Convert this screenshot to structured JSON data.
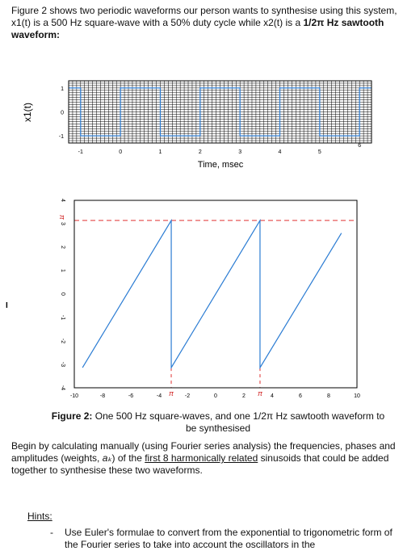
{
  "intro": {
    "part1": "Figure 2 shows two periodic waveforms our person wants to synthesise using this system, x1(t) is a 500 Hz square-wave with a 50% duty cycle while x2(t) is a ",
    "part2": "1/2π Hz sawtooth waveform:"
  },
  "chart_data": [
    {
      "type": "line",
      "title": "",
      "xlabel": "Time, msec",
      "ylabel": "x1(t)",
      "xlim": [
        -1.3,
        6.3
      ],
      "ylim": [
        -1.3,
        1.3
      ],
      "x_ticks": [
        -1,
        0,
        1,
        2,
        3,
        4,
        5,
        6
      ],
      "y_ticks": [
        1,
        0,
        -1
      ],
      "grid": true,
      "series": [
        {
          "color": "#2b7cd3",
          "x": [
            -1.3,
            -1,
            -1,
            0,
            0,
            1,
            1,
            2,
            2,
            3,
            3,
            4,
            4,
            5,
            5,
            6,
            6,
            6.3
          ],
          "y": [
            1,
            1,
            -1,
            -1,
            1,
            1,
            -1,
            -1,
            1,
            1,
            -1,
            -1,
            1,
            1,
            -1,
            -1,
            1,
            1
          ]
        }
      ]
    },
    {
      "type": "line",
      "title": "",
      "xlabel": "",
      "ylabel": "",
      "xlim": [
        -10,
        10
      ],
      "ylim": [
        -4,
        4
      ],
      "x_ticks": [
        "-10",
        "-8",
        "-6",
        "-4",
        "-2",
        "0",
        "2",
        "4",
        "6",
        "8",
        "10"
      ],
      "y_ticks": [
        "4",
        "3",
        "2",
        "1",
        "0",
        "-1",
        "-2",
        "-3",
        "-4"
      ],
      "pi_labels": [
        "π",
        "π",
        "π"
      ],
      "grid": false,
      "series": [
        {
          "color": "#2b7cd3",
          "x": [
            -9.42,
            -3.14,
            -3.14,
            3.14,
            3.14,
            8.9
          ],
          "y": [
            -3.14,
            3.14,
            -3.14,
            3.14,
            -3.14,
            2.6
          ]
        }
      ],
      "reference_lines": [
        {
          "orientation": "horizontal",
          "value": 3.14159,
          "color": "#e03030",
          "style": "dashed"
        },
        {
          "orientation": "vertical",
          "value": -3.14159,
          "color": "#e03030",
          "style": "dashed"
        },
        {
          "orientation": "vertical",
          "value": 3.14159,
          "color": "#e03030",
          "style": "dashed"
        }
      ]
    }
  ],
  "caption": {
    "label": "Figure 2:",
    "text": " One 500 Hz square-waves, and one 1/2π Hz sawtooth waveform  to be synthesised"
  },
  "body": {
    "part1": "Begin by calculating manually (using Fourier series analysis) the frequencies, phases and amplitudes (weights, ",
    "weights_symbol": "aₖ",
    "part2": ") of the ",
    "underlined": "first 8 harmonically related",
    "part3": " sinusoids that could be added together to synthesise these two waveforms."
  },
  "hints": {
    "label": "Hints:",
    "dash": "-",
    "item1": "Use Euler's formulae to convert from the exponential to trigonometric form of the Fourier series to take into account the oscillators in the"
  },
  "margin_mark": "I"
}
